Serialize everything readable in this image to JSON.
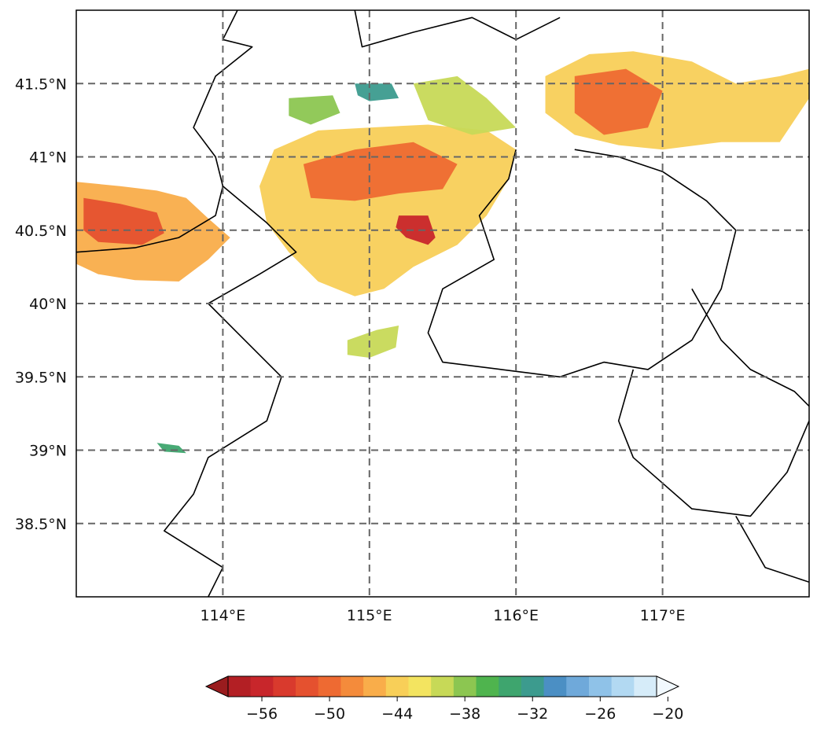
{
  "map": {
    "lon_range": [
      113,
      118
    ],
    "lat_range": [
      38,
      42
    ],
    "lon_ticks": [
      {
        "value": 114,
        "label": "114°E"
      },
      {
        "value": 115,
        "label": "115°E"
      },
      {
        "value": 116,
        "label": "116°E"
      },
      {
        "value": 117,
        "label": "117°E"
      }
    ],
    "lat_ticks": [
      {
        "value": 41.5,
        "label": "41.5°N"
      },
      {
        "value": 41.0,
        "label": "41°N"
      },
      {
        "value": 40.5,
        "label": "40.5°N"
      },
      {
        "value": 40.0,
        "label": "40°N"
      },
      {
        "value": 39.5,
        "label": "39.5°N"
      },
      {
        "value": 39.0,
        "label": "39°N"
      },
      {
        "value": 38.5,
        "label": "38.5°N"
      }
    ],
    "gridlines": true,
    "gridline_style": "dashed",
    "field_regions": [
      {
        "name": "west-band",
        "level": -47,
        "outline": [
          [
            113.0,
            40.83
          ],
          [
            113.3,
            40.8
          ],
          [
            113.55,
            40.77
          ],
          [
            113.75,
            40.72
          ],
          [
            113.9,
            40.58
          ],
          [
            114.05,
            40.45
          ],
          [
            113.9,
            40.3
          ],
          [
            113.7,
            40.15
          ],
          [
            113.4,
            40.16
          ],
          [
            113.15,
            40.2
          ],
          [
            113.0,
            40.27
          ]
        ]
      },
      {
        "name": "west-core",
        "level": -52,
        "outline": [
          [
            113.05,
            40.72
          ],
          [
            113.3,
            40.68
          ],
          [
            113.55,
            40.62
          ],
          [
            113.6,
            40.48
          ],
          [
            113.45,
            40.4
          ],
          [
            113.15,
            40.42
          ],
          [
            113.05,
            40.5
          ]
        ]
      },
      {
        "name": "central-cell",
        "level": -45,
        "outline": [
          [
            114.35,
            41.05
          ],
          [
            114.65,
            41.18
          ],
          [
            115.0,
            41.2
          ],
          [
            115.4,
            41.22
          ],
          [
            115.8,
            41.18
          ],
          [
            116.0,
            41.05
          ],
          [
            115.95,
            40.85
          ],
          [
            115.8,
            40.6
          ],
          [
            115.6,
            40.4
          ],
          [
            115.3,
            40.25
          ],
          [
            115.1,
            40.1
          ],
          [
            114.9,
            40.05
          ],
          [
            114.65,
            40.15
          ],
          [
            114.45,
            40.35
          ],
          [
            114.3,
            40.55
          ],
          [
            114.25,
            40.8
          ]
        ]
      },
      {
        "name": "central-core",
        "level": -51,
        "outline": [
          [
            114.55,
            40.95
          ],
          [
            114.9,
            41.05
          ],
          [
            115.3,
            41.1
          ],
          [
            115.6,
            40.95
          ],
          [
            115.5,
            40.78
          ],
          [
            115.2,
            40.75
          ],
          [
            114.9,
            40.7
          ],
          [
            114.6,
            40.72
          ]
        ]
      },
      {
        "name": "central-peak",
        "level": -57,
        "outline": [
          [
            115.2,
            40.6
          ],
          [
            115.4,
            40.6
          ],
          [
            115.45,
            40.45
          ],
          [
            115.4,
            40.4
          ],
          [
            115.25,
            40.45
          ],
          [
            115.18,
            40.52
          ]
        ]
      },
      {
        "name": "north-cell",
        "level": -40,
        "outline": [
          [
            115.3,
            41.5
          ],
          [
            115.6,
            41.55
          ],
          [
            115.8,
            41.4
          ],
          [
            116.0,
            41.2
          ],
          [
            115.7,
            41.15
          ],
          [
            115.4,
            41.25
          ]
        ]
      },
      {
        "name": "northeast-band",
        "level": -44,
        "outline": [
          [
            116.2,
            41.55
          ],
          [
            116.5,
            41.7
          ],
          [
            116.8,
            41.72
          ],
          [
            117.2,
            41.65
          ],
          [
            117.5,
            41.5
          ],
          [
            117.8,
            41.55
          ],
          [
            118.0,
            41.6
          ],
          [
            118.0,
            41.4
          ],
          [
            117.8,
            41.1
          ],
          [
            117.4,
            41.1
          ],
          [
            117.0,
            41.05
          ],
          [
            116.7,
            41.08
          ],
          [
            116.4,
            41.15
          ],
          [
            116.2,
            41.3
          ]
        ]
      },
      {
        "name": "northeast-core",
        "level": -50,
        "outline": [
          [
            116.4,
            41.55
          ],
          [
            116.75,
            41.6
          ],
          [
            117.0,
            41.45
          ],
          [
            116.9,
            41.2
          ],
          [
            116.6,
            41.15
          ],
          [
            116.4,
            41.3
          ]
        ]
      },
      {
        "name": "small-cell-south",
        "level": -41,
        "outline": [
          [
            114.85,
            39.75
          ],
          [
            115.05,
            39.82
          ],
          [
            115.2,
            39.85
          ],
          [
            115.18,
            39.7
          ],
          [
            115.0,
            39.63
          ],
          [
            114.85,
            39.65
          ]
        ]
      },
      {
        "name": "small-cell-north",
        "level": -38,
        "outline": [
          [
            114.45,
            41.4
          ],
          [
            114.75,
            41.42
          ],
          [
            114.8,
            41.3
          ],
          [
            114.6,
            41.22
          ],
          [
            114.45,
            41.28
          ]
        ]
      },
      {
        "name": "blue-fleck-a",
        "level": -33,
        "outline": [
          [
            114.9,
            41.5
          ],
          [
            115.15,
            41.5
          ],
          [
            115.2,
            41.4
          ],
          [
            115.0,
            41.38
          ],
          [
            114.92,
            41.42
          ]
        ]
      },
      {
        "name": "blue-fleck-b",
        "level": -34,
        "outline": [
          [
            113.55,
            39.05
          ],
          [
            113.7,
            39.03
          ],
          [
            113.75,
            38.98
          ],
          [
            113.6,
            38.99
          ]
        ]
      }
    ],
    "boundaries": [
      {
        "name": "boundary-1",
        "points": [
          [
            114.1,
            42.0
          ],
          [
            114.0,
            41.8
          ],
          [
            114.2,
            41.75
          ],
          [
            113.95,
            41.55
          ],
          [
            113.8,
            41.2
          ],
          [
            113.95,
            41.0
          ],
          [
            114.0,
            40.8
          ],
          [
            113.95,
            40.6
          ],
          [
            113.7,
            40.45
          ],
          [
            113.4,
            40.38
          ],
          [
            113.0,
            40.35
          ]
        ]
      },
      {
        "name": "boundary-2",
        "points": [
          [
            114.0,
            40.8
          ],
          [
            114.3,
            40.55
          ],
          [
            114.5,
            40.35
          ],
          [
            114.25,
            40.2
          ],
          [
            113.9,
            40.0
          ],
          [
            114.1,
            39.8
          ],
          [
            114.4,
            39.5
          ],
          [
            114.3,
            39.2
          ],
          [
            113.9,
            38.95
          ],
          [
            113.8,
            38.7
          ],
          [
            113.6,
            38.45
          ],
          [
            114.0,
            38.2
          ],
          [
            113.9,
            38.0
          ]
        ]
      },
      {
        "name": "boundary-3",
        "points": [
          [
            114.9,
            42.0
          ],
          [
            114.95,
            41.75
          ],
          [
            115.3,
            41.85
          ],
          [
            115.7,
            41.95
          ],
          [
            116.0,
            41.8
          ],
          [
            116.3,
            41.95
          ]
        ]
      },
      {
        "name": "boundary-4",
        "points": [
          [
            116.0,
            41.05
          ],
          [
            115.95,
            40.85
          ],
          [
            115.75,
            40.6
          ],
          [
            115.85,
            40.3
          ],
          [
            115.5,
            40.1
          ],
          [
            115.4,
            39.8
          ],
          [
            115.5,
            39.6
          ],
          [
            115.9,
            39.55
          ],
          [
            116.3,
            39.5
          ],
          [
            116.6,
            39.6
          ],
          [
            116.9,
            39.55
          ],
          [
            117.2,
            39.75
          ],
          [
            117.4,
            40.1
          ],
          [
            117.5,
            40.5
          ],
          [
            117.3,
            40.7
          ],
          [
            117.0,
            40.9
          ],
          [
            116.7,
            41.0
          ],
          [
            116.4,
            41.05
          ]
        ]
      },
      {
        "name": "boundary-5",
        "points": [
          [
            116.8,
            39.55
          ],
          [
            116.7,
            39.2
          ],
          [
            116.8,
            38.95
          ],
          [
            117.2,
            38.6
          ],
          [
            117.6,
            38.55
          ],
          [
            117.85,
            38.85
          ],
          [
            118.0,
            39.2
          ]
        ]
      },
      {
        "name": "boundary-6",
        "points": [
          [
            117.2,
            40.1
          ],
          [
            117.4,
            39.75
          ],
          [
            117.6,
            39.55
          ],
          [
            117.9,
            39.4
          ],
          [
            118.0,
            39.3
          ]
        ]
      },
      {
        "name": "boundary-7",
        "points": [
          [
            117.5,
            38.55
          ],
          [
            117.7,
            38.2
          ],
          [
            118.0,
            38.1
          ]
        ]
      }
    ]
  },
  "colorbar": {
    "ticks": [
      {
        "value": -56,
        "label": "−56"
      },
      {
        "value": -50,
        "label": "−50"
      },
      {
        "value": -44,
        "label": "−44"
      },
      {
        "value": -38,
        "label": "−38"
      },
      {
        "value": -32,
        "label": "−32"
      },
      {
        "value": -26,
        "label": "−26"
      },
      {
        "value": -20,
        "label": "−20"
      }
    ],
    "levels": [
      -59,
      -57,
      -55,
      -53,
      -51,
      -49,
      -47,
      -45,
      -43,
      -41,
      -39,
      -37,
      -35,
      -33,
      -31,
      -29,
      -27,
      -25,
      -23,
      -21
    ],
    "colors": [
      "#9a1c1e",
      "#b31f24",
      "#c8262b",
      "#d93a2d",
      "#e5512f",
      "#ee6a32",
      "#f48b3b",
      "#f9ad4a",
      "#f8cf58",
      "#f3e460",
      "#c7d957",
      "#8cc651",
      "#4fb44e",
      "#3ea56e",
      "#3c9b8e",
      "#4b8fc4",
      "#6fa9da",
      "#8fc2e8",
      "#b2d9f2",
      "#d6ecf9",
      "#f2f9fe"
    ],
    "extend": "both"
  }
}
